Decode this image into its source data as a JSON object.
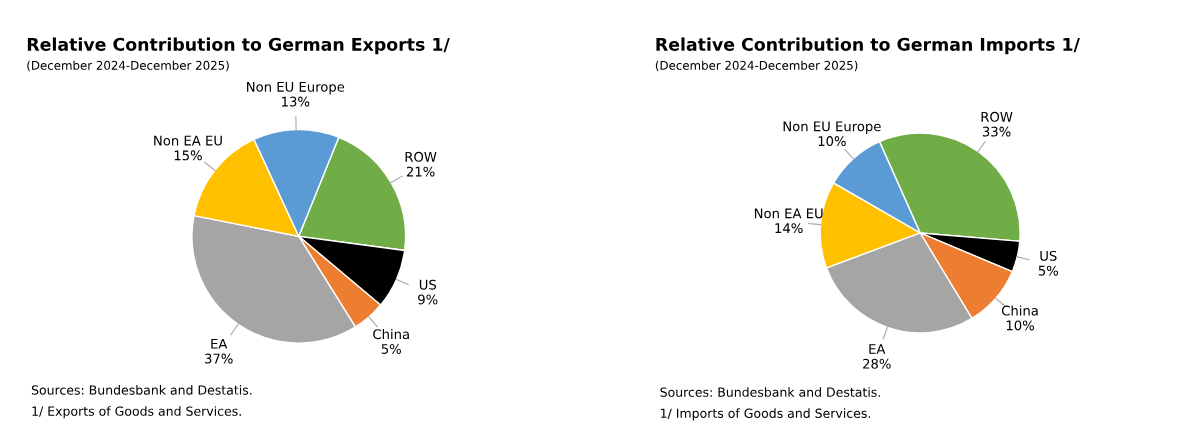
{
  "chart_data": [
    {
      "type": "pie",
      "title": "Relative Contribution to German Exports 1/",
      "subtitle": "(December 2024-December 2025)",
      "categories": [
        "ROW",
        "US",
        "China",
        "EA",
        "Non EA EU",
        "Non EU Europe"
      ],
      "values": [
        21,
        9,
        5,
        37,
        15,
        13
      ],
      "value_labels": [
        "21%",
        "9%",
        "5%",
        "37%",
        "15%",
        "13%"
      ],
      "colors": [
        "#70ad47",
        "#000000",
        "#ed7d31",
        "#a5a5a5",
        "#ffc000",
        "#5b9bd5"
      ],
      "annotations": [
        "Sources: Bundesbank and Destatis.",
        "1/ Exports of Goods and Services."
      ]
    },
    {
      "type": "pie",
      "title": "Relative Contribution to German Imports 1/",
      "subtitle": "(December 2024-December 2025)",
      "categories": [
        "ROW",
        "US",
        "China",
        "EA",
        "Non EA EU",
        "Non EU Europe"
      ],
      "values": [
        33,
        5,
        10,
        28,
        14,
        10
      ],
      "value_labels": [
        "33%",
        "5%",
        "10%",
        "28%",
        "14%",
        "10%"
      ],
      "colors": [
        "#70ad47",
        "#000000",
        "#ed7d31",
        "#a5a5a5",
        "#ffc000",
        "#5b9bd5"
      ],
      "annotations": [
        "Sources: Bundesbank and Destatis.",
        "1/ Imports of Goods and Services."
      ]
    }
  ]
}
